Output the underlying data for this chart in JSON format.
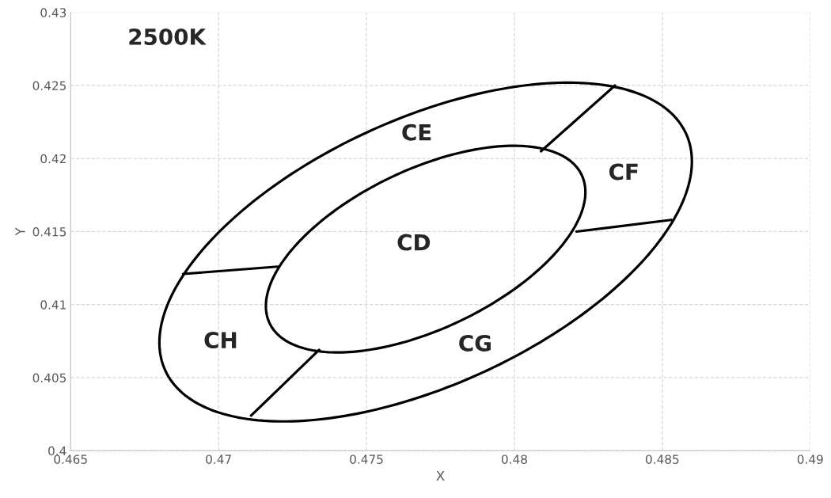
{
  "chart_data": {
    "type": "line",
    "title": "2500K",
    "xlabel": "X",
    "ylabel": "Y",
    "xlim": [
      0.465,
      0.49
    ],
    "xticks": [
      0.465,
      0.47,
      0.475,
      0.48,
      0.485,
      0.49
    ],
    "ylim": [
      0.4,
      0.43
    ],
    "yticks": [
      0.4,
      0.405,
      0.41,
      0.415,
      0.42,
      0.425,
      0.43
    ],
    "grid": true,
    "legend": false,
    "marker": "none",
    "line_style": "solid",
    "series": [
      {
        "color": "#000000",
        "x": [
          0.4809,
          0.4834
        ],
        "values": [
          0.4205,
          0.425
        ]
      },
      {
        "color": "#000000",
        "x": [
          0.4821,
          0.4853
        ],
        "values": [
          0.415,
          0.4158
        ]
      },
      {
        "color": "#000000",
        "x": [
          0.4734,
          0.4711
        ],
        "values": [
          0.4069,
          0.4024
        ]
      },
      {
        "color": "#000000",
        "x": [
          0.472,
          0.4688
        ],
        "values": [
          0.4126,
          0.4121
        ]
      }
    ],
    "annotations": [
      "CE",
      "CF",
      "CD",
      "CH",
      "CG"
    ]
  }
}
